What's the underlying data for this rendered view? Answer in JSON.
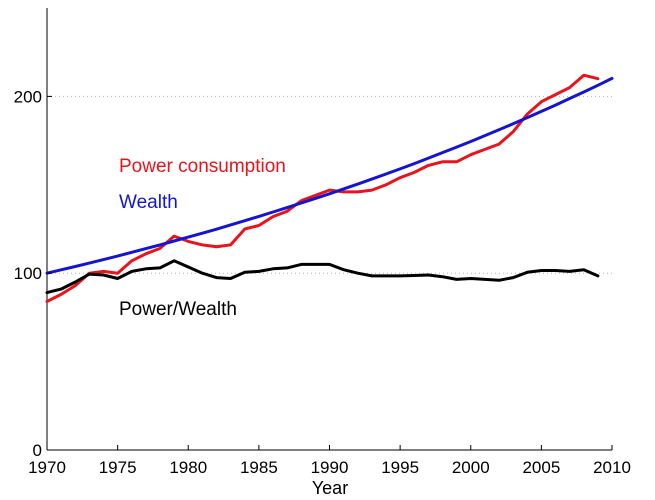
{
  "chart_data": {
    "type": "line",
    "xlabel": "Year",
    "ylabel": "",
    "xlim": [
      1970,
      2010
    ],
    "ylim": [
      0,
      250
    ],
    "x_ticks": [
      1970,
      1975,
      1980,
      1985,
      1990,
      1995,
      2000,
      2005,
      2010
    ],
    "y_ticks": [
      0,
      100,
      200
    ],
    "y_gridlines": [
      100,
      200
    ],
    "grid": "dotted horizontal at 100 and 200",
    "series": [
      {
        "name": "Power consumption",
        "color": "#e8141c",
        "x": [
          1970,
          1971,
          1972,
          1973,
          1974,
          1975,
          1976,
          1977,
          1978,
          1979,
          1980,
          1981,
          1982,
          1983,
          1984,
          1985,
          1986,
          1987,
          1988,
          1989,
          1990,
          1991,
          1992,
          1993,
          1994,
          1995,
          1996,
          1997,
          1998,
          1999,
          2000,
          2001,
          2002,
          2003,
          2004,
          2005,
          2006,
          2007,
          2008,
          2009
        ],
        "values": [
          84,
          88,
          93,
          100,
          101,
          100,
          107,
          111,
          114,
          121,
          118,
          116,
          115,
          116,
          125,
          127,
          132,
          135,
          141,
          144,
          147,
          146,
          146,
          147,
          150,
          154,
          157,
          161,
          163,
          163,
          167,
          170,
          173,
          180,
          190,
          197,
          201,
          205,
          212,
          210
        ]
      },
      {
        "name": "Wealth",
        "color": "#1414d2",
        "x": [
          1970,
          1971,
          1972,
          1973,
          1974,
          1975,
          1976,
          1977,
          1978,
          1979,
          1980,
          1981,
          1982,
          1983,
          1984,
          1985,
          1986,
          1987,
          1988,
          1989,
          1990,
          1991,
          1992,
          1993,
          1994,
          1995,
          1996,
          1997,
          1998,
          1999,
          2000,
          2001,
          2002,
          2003,
          2004,
          2005,
          2006,
          2007,
          2008,
          2009,
          2010
        ],
        "values": [
          100.0,
          101.9,
          103.8,
          105.7,
          107.7,
          109.7,
          111.8,
          113.9,
          116.0,
          118.2,
          120.4,
          122.6,
          124.9,
          127.3,
          129.7,
          132.1,
          134.6,
          137.1,
          139.7,
          142.3,
          144.9,
          147.7,
          150.4,
          153.2,
          156.1,
          159.0,
          162.0,
          165.1,
          168.2,
          171.3,
          174.5,
          177.8,
          181.1,
          184.5,
          188.0,
          191.5,
          195.1,
          198.8,
          202.5,
          206.3,
          210.2
        ]
      },
      {
        "name": "Power/Wealth",
        "color": "#000000",
        "x": [
          1970,
          1971,
          1972,
          1973,
          1974,
          1975,
          1976,
          1977,
          1978,
          1979,
          1980,
          1981,
          1982,
          1983,
          1984,
          1985,
          1986,
          1987,
          1988,
          1989,
          1990,
          1991,
          1992,
          1993,
          1994,
          1995,
          1996,
          1997,
          1998,
          1999,
          2000,
          2001,
          2002,
          2003,
          2004,
          2005,
          2006,
          2007,
          2008,
          2009
        ],
        "values": [
          89,
          91,
          95,
          99.5,
          99,
          97,
          101,
          102.5,
          103,
          107,
          103.5,
          100,
          97.5,
          97,
          100.5,
          101,
          102.5,
          103,
          105,
          105,
          105,
          102,
          100,
          98.5,
          98.5,
          98.5,
          98.7,
          99,
          98,
          96.5,
          97,
          96.5,
          96,
          97.5,
          100.5,
          101.5,
          101.5,
          101,
          102,
          98.5
        ]
      }
    ],
    "annotations": [
      "Power consumption",
      "Wealth",
      "Power/Wealth"
    ]
  }
}
